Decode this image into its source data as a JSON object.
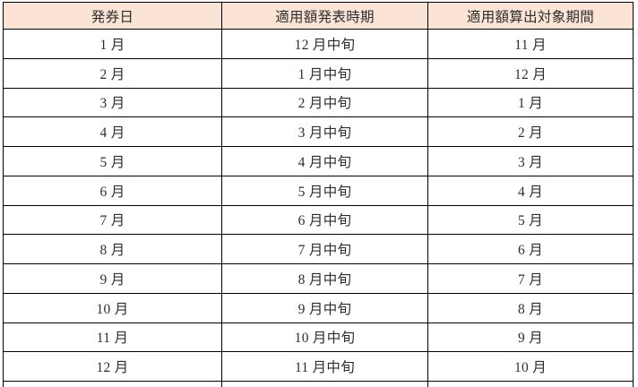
{
  "table": {
    "headers": [
      "発券日",
      "適用額発表時期",
      "適用額算出対象期間"
    ],
    "rows": [
      [
        "1 月",
        "12 月中旬",
        "11 月"
      ],
      [
        "2 月",
        "1 月中旬",
        "12 月"
      ],
      [
        "3 月",
        "2 月中旬",
        "1 月"
      ],
      [
        "4 月",
        "3 月中旬",
        "2 月"
      ],
      [
        "5 月",
        "4 月中旬",
        "3 月"
      ],
      [
        "6 月",
        "5 月中旬",
        "4 月"
      ],
      [
        "7 月",
        "6 月中旬",
        "5 月"
      ],
      [
        "8 月",
        "7 月中旬",
        "6 月"
      ],
      [
        "9 月",
        "8 月中旬",
        "7 月"
      ],
      [
        "10 月",
        "9 月中旬",
        "8 月"
      ],
      [
        "11 月",
        "10 月中旬",
        "9 月"
      ],
      [
        "12 月",
        "11 月中旬",
        "10 月"
      ]
    ],
    "partial_last_row": true,
    "colors": {
      "header_bg": "#FBE4D5",
      "border": "#000000",
      "text": "#2E2E2E"
    }
  }
}
